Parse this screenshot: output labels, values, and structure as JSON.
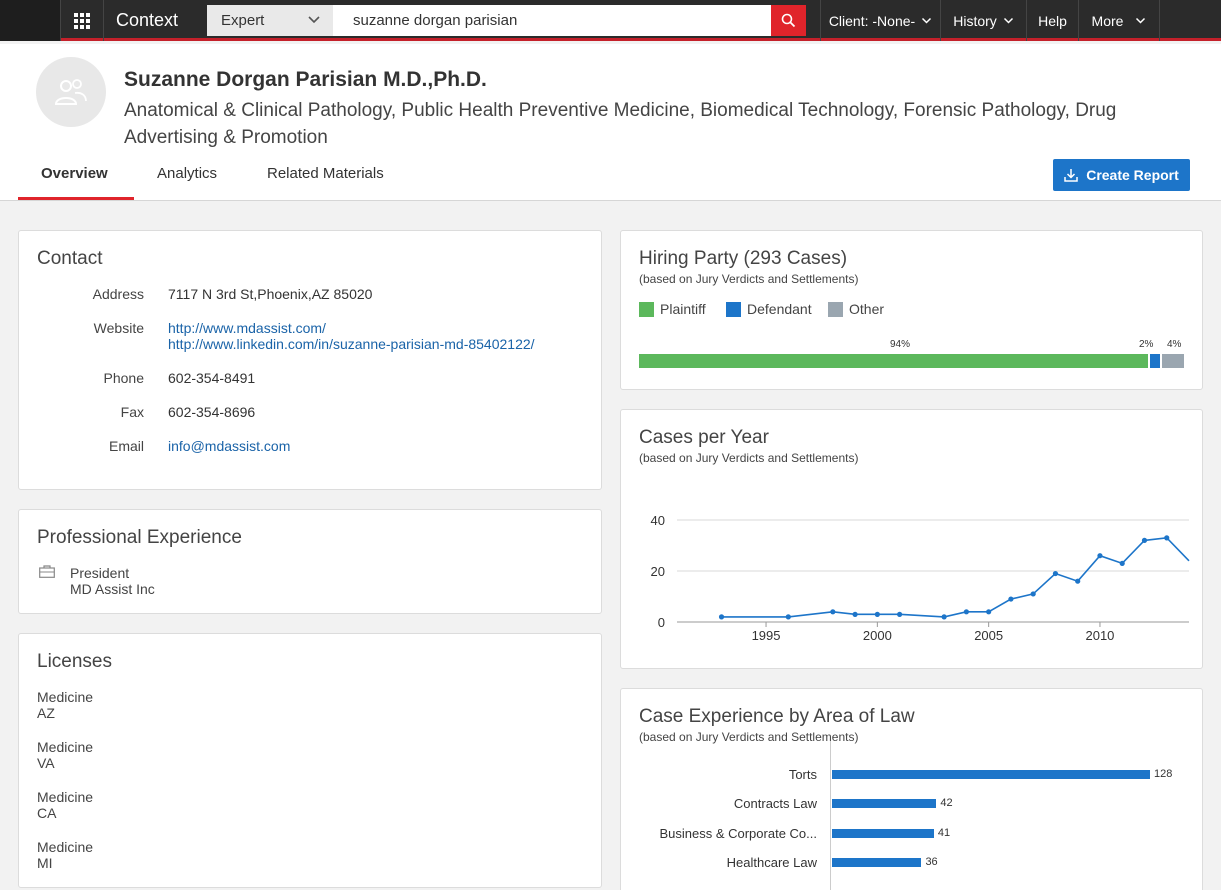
{
  "topbar": {
    "brand": "Context",
    "search_type": "Expert",
    "search_value": "suzanne dorgan parisian",
    "nav": [
      {
        "label": "Client: -None-"
      },
      {
        "label": "History"
      },
      {
        "label": "Help"
      },
      {
        "label": "More"
      }
    ]
  },
  "expert": {
    "name": "Suzanne Dorgan Parisian M.D.,Ph.D.",
    "specialties": "Anatomical & Clinical Pathology, Public Health Preventive Medicine, Biomedical Technology, Forensic Pathology, Drug Advertising & Promotion"
  },
  "tabs": [
    {
      "label": "Overview",
      "active": true
    },
    {
      "label": "Analytics",
      "active": false
    },
    {
      "label": "Related Materials",
      "active": false
    }
  ],
  "create_report_label": "Create Report",
  "contact": {
    "title": "Contact",
    "address_label": "Address",
    "address": "7117 N 3rd St,Phoenix,AZ 85020",
    "website_label": "Website",
    "website_1": "http://www.mdassist.com/",
    "website_2": "http://www.linkedin.com/in/suzanne-parisian-md-85402122/",
    "phone_label": "Phone",
    "phone": "602-354-8491",
    "fax_label": "Fax",
    "fax": "602-354-8696",
    "email_label": "Email",
    "email": "info@mdassist.com"
  },
  "experience": {
    "title": "Professional Experience",
    "items": [
      {
        "title": "President",
        "org": "MD Assist Inc"
      }
    ]
  },
  "licenses": {
    "title": "Licenses",
    "items": [
      {
        "name": "Medicine",
        "state": "AZ"
      },
      {
        "name": "Medicine",
        "state": "VA"
      },
      {
        "name": "Medicine",
        "state": "CA"
      },
      {
        "name": "Medicine",
        "state": "MI"
      }
    ]
  },
  "hiring_party": {
    "title": "Hiring Party (293 Cases)",
    "subtitle": "(based on Jury Verdicts and Settlements)",
    "legend": [
      {
        "label": "Plaintiff",
        "color": "#5cb85c"
      },
      {
        "label": "Defendant",
        "color": "#1d75c9"
      },
      {
        "label": "Other",
        "color": "#9aa6b0"
      }
    ],
    "pct_labels": [
      "94%",
      "2%",
      "4%"
    ]
  },
  "cases_per_year": {
    "title": "Cases per Year",
    "subtitle": "(based on Jury Verdicts and Settlements)"
  },
  "area_of_law": {
    "title": "Case Experience by Area of Law",
    "subtitle": "(based on Jury Verdicts and Settlements)"
  },
  "chart_data": [
    {
      "type": "bar",
      "orientation": "horizontal-stacked",
      "title": "Hiring Party (293 Cases)",
      "categories": [
        "Plaintiff",
        "Defendant",
        "Other"
      ],
      "values": [
        94,
        2,
        4
      ],
      "unit": "%",
      "colors": [
        "#5cb85c",
        "#1d75c9",
        "#9aa6b0"
      ]
    },
    {
      "type": "line",
      "title": "Cases per Year",
      "x": [
        1993,
        1996,
        1998,
        1999,
        2000,
        2001,
        2003,
        2004,
        2005,
        2006,
        2007,
        2008,
        2009,
        2010,
        2011,
        2012,
        2013,
        2014
      ],
      "y": [
        2,
        2,
        4,
        3,
        3,
        3,
        2,
        4,
        4,
        9,
        11,
        19,
        16,
        26,
        23,
        32,
        33,
        24
      ],
      "x_ticks": [
        "1995",
        "2000",
        "2005",
        "2010"
      ],
      "y_ticks": [
        "0",
        "20",
        "40"
      ],
      "ylim": [
        0,
        40
      ],
      "xlim": [
        1991,
        2014
      ],
      "color": "#1d75c9",
      "grid": true
    },
    {
      "type": "bar",
      "orientation": "horizontal",
      "title": "Case Experience by Area of Law",
      "categories": [
        "Torts",
        "Contracts Law",
        "Business & Corporate Co...",
        "Healthcare Law"
      ],
      "values": [
        128,
        42,
        41,
        36
      ],
      "color": "#1d75c9"
    }
  ]
}
